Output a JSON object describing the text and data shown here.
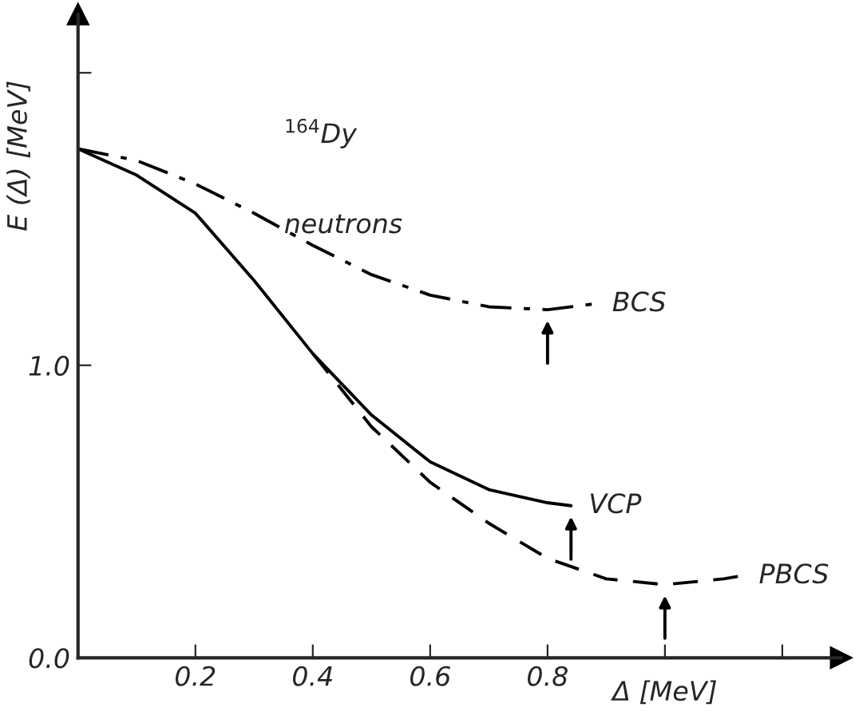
{
  "chart_data": {
    "type": "line",
    "xlabel": "Δ [MeV]",
    "ylabel": "E (Δ) [MeV]",
    "xlim": [
      0,
      1.3
    ],
    "ylim": [
      0,
      2.2
    ],
    "xticks": [
      0.2,
      0.4,
      0.6,
      0.8,
      {
        "value": 1.0,
        "label": null
      },
      {
        "value": 1.2,
        "label": null
      }
    ],
    "yticks": [
      {
        "value": 0,
        "label": "0.0"
      },
      {
        "value": 1.0,
        "label": "1.0"
      },
      {
        "value": 2.0,
        "label": null
      }
    ],
    "grid": false,
    "marker": "none",
    "series": [
      {
        "name": "BCS",
        "color": "#000000",
        "line_style": "dashdot",
        "x": [
          0,
          0.1,
          0.2,
          0.3,
          0.4,
          0.5,
          0.6,
          0.7,
          0.8,
          0.88
        ],
        "values": [
          1.74,
          1.7,
          1.62,
          1.52,
          1.41,
          1.31,
          1.24,
          1.2,
          1.19,
          1.21
        ]
      },
      {
        "name": "VCP",
        "color": "#000000",
        "line_style": "solid",
        "x": [
          0,
          0.1,
          0.2,
          0.3,
          0.4,
          0.5,
          0.6,
          0.7,
          0.8,
          0.84
        ],
        "values": [
          1.74,
          1.65,
          1.52,
          1.29,
          1.04,
          0.83,
          0.67,
          0.575,
          0.53,
          0.52
        ]
      },
      {
        "name": "PBCS",
        "color": "#000000",
        "line_style": "dashed",
        "x": [
          0.4,
          0.5,
          0.6,
          0.7,
          0.8,
          0.9,
          1.0,
          1.1,
          1.13
        ],
        "values": [
          1.04,
          0.79,
          0.6,
          0.46,
          0.34,
          0.27,
          0.25,
          0.27,
          0.28
        ]
      }
    ],
    "annotations": [
      "$^{164}$Dy",
      "neutrons"
    ]
  }
}
